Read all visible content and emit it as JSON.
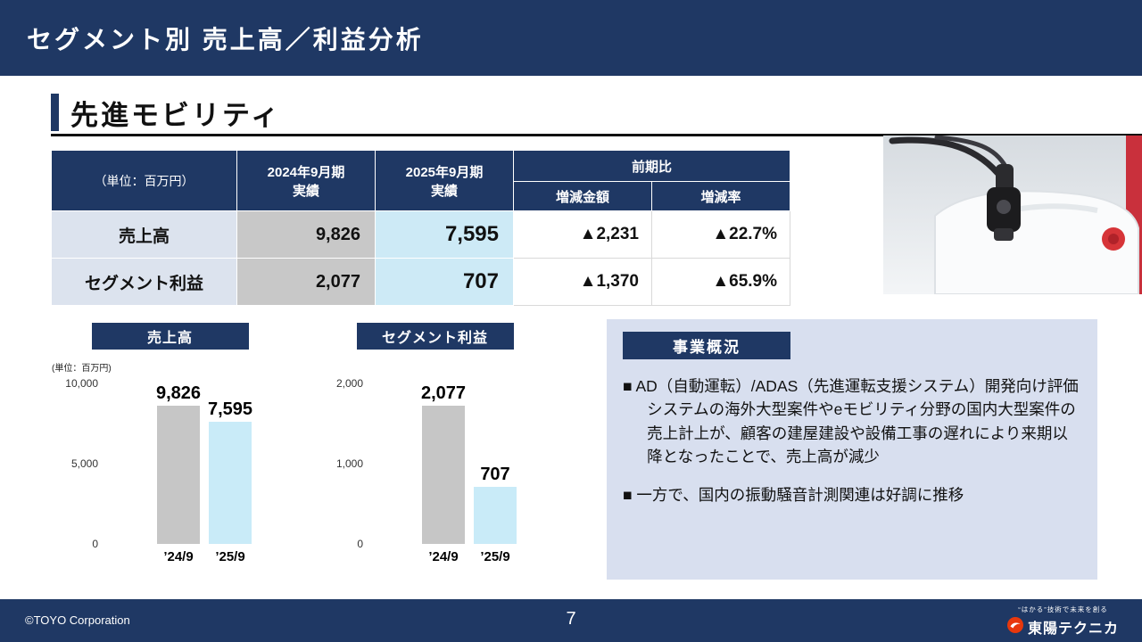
{
  "title_bar": {
    "title": "セグメント別 売上高／利益分析"
  },
  "section": {
    "heading": "先進モビリティ"
  },
  "table": {
    "unit_label": "（単位：百万円）",
    "col_2024": "2024年9月期\n実績",
    "col_2025": "2025年9月期\n実績",
    "yoy_header": "前期比",
    "yoy_amount": "増減金額",
    "yoy_rate": "増減率",
    "rows": [
      {
        "label": "売上高",
        "fy2024": "9,826",
        "fy2025": "7,595",
        "diff": "▲2,231",
        "rate": "▲22.7%"
      },
      {
        "label": "セグメント利益",
        "fy2024": "2,077",
        "fy2025": "707",
        "diff": "▲1,370",
        "rate": "▲65.9%"
      }
    ]
  },
  "chart_data": [
    {
      "type": "bar",
      "title": "売上高",
      "unit": "(単位：百万円)",
      "categories": [
        "’24/9",
        "’25/9"
      ],
      "values": [
        9826,
        7595
      ],
      "value_labels": [
        "9,826",
        "7,595"
      ],
      "yticks": [
        "10,000",
        "5,000",
        "0"
      ],
      "ylim": [
        0,
        10000
      ],
      "grid": false,
      "bar_colors": [
        "#c6c6c6",
        "#c9ebf8"
      ]
    },
    {
      "type": "bar",
      "title": "セグメント利益",
      "unit": "",
      "categories": [
        "’24/9",
        "’25/9"
      ],
      "values": [
        2077,
        707
      ],
      "value_labels": [
        "2,077",
        "707"
      ],
      "yticks": [
        "2,000",
        "1,000",
        "0"
      ],
      "ylim": [
        0,
        2000
      ],
      "grid": false,
      "bar_colors": [
        "#c6c6c6",
        "#c9ebf8"
      ]
    }
  ],
  "overview": {
    "badge": "事業概況",
    "bullets": [
      "■ AD（自動運転）/ADAS（先進運転支援システム）開発向け評価システムの海外大型案件やeモビリティ分野の国内大型案件の売上計上が、顧客の建屋建設や設備工事の遅れにより来期以降となったことで、売上高が減少",
      "■ 一方で、国内の振動騒音計測関連は好調に推移"
    ]
  },
  "footer": {
    "copyright": "©TOYO Corporation",
    "page": "7",
    "tagline": "“はかる”技術で未来を創る",
    "logo_text": "東陽テクニカ"
  },
  "colors": {
    "navy": "#1f3864",
    "bar_gray": "#c6c6c6",
    "bar_cyan": "#c9ebf8",
    "cell_label_bg": "#dce3ee",
    "cell_2024_bg": "#c8c8c8",
    "cell_2025_bg": "#cdeaf6",
    "panel_bg": "#d8dfef",
    "logo_red": "#e8380d"
  }
}
